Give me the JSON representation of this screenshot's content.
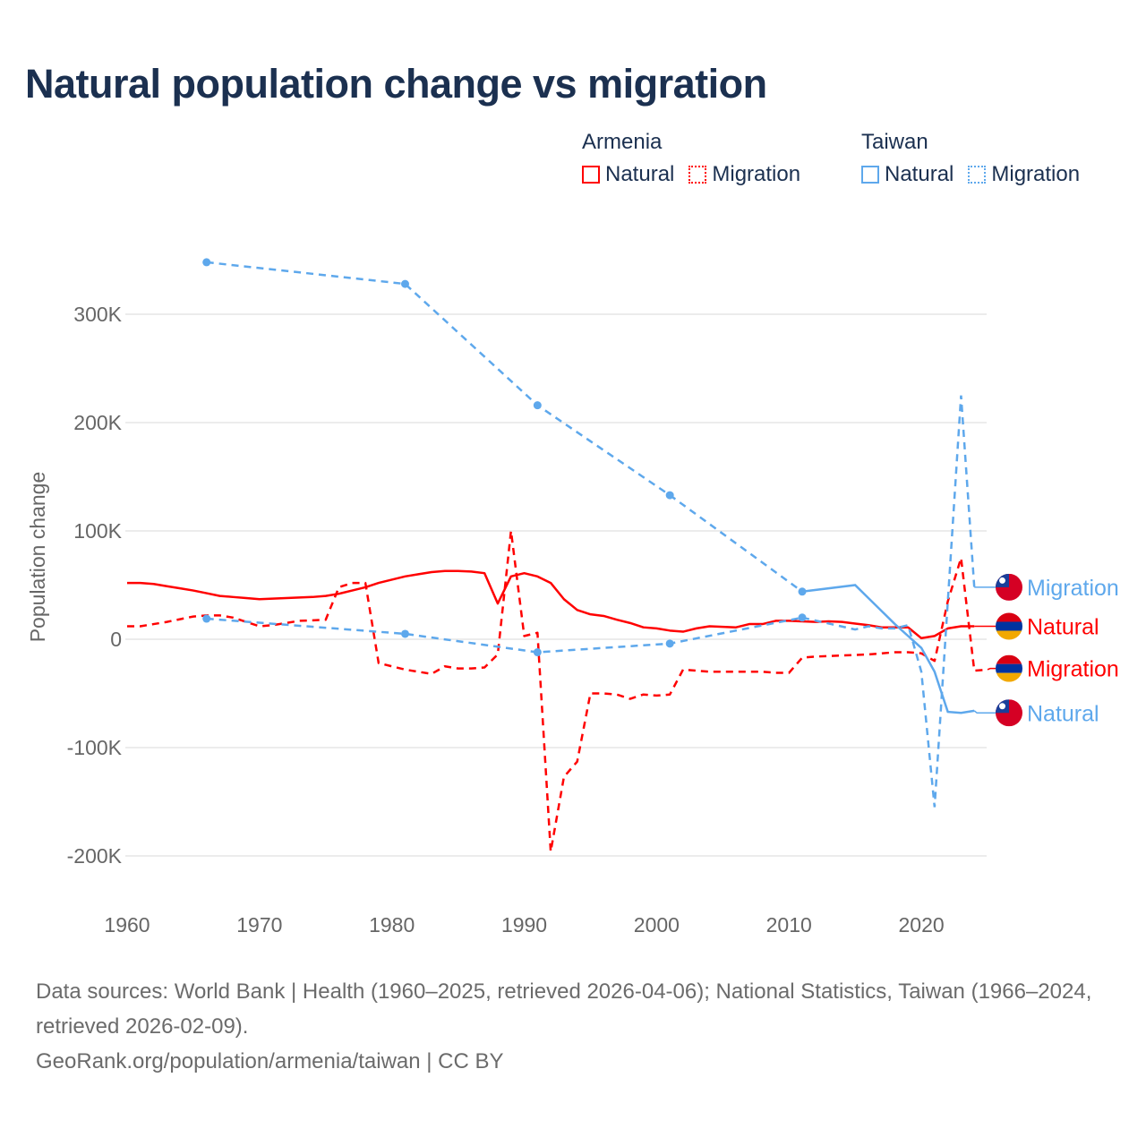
{
  "title": "Natural population change vs migration",
  "legend": [
    {
      "group": "Armenia",
      "color": "#ff0000",
      "items": [
        "Natural",
        "Migration"
      ]
    },
    {
      "group": "Taiwan",
      "color": "#5ea8ec",
      "items": [
        "Natural",
        "Migration"
      ]
    }
  ],
  "footer": {
    "sources": "Data sources: World Bank | Health (1960–2025, retrieved 2026-04-06); National Statistics, Taiwan (1966–2024, retrieved 2026-02-09).",
    "credit": "GeoRank.org/population/armenia/taiwan | CC BY"
  },
  "chart_data": {
    "type": "line",
    "title": "Natural population change vs migration",
    "xlabel": "",
    "ylabel": "Population change",
    "xlim": [
      1960,
      2025
    ],
    "ylim": [
      -200000,
      300000
    ],
    "x_ticks": [
      1960,
      1970,
      1980,
      1990,
      2000,
      2010,
      2020
    ],
    "y_ticks": [
      -200000,
      -100000,
      0,
      100000,
      200000,
      300000
    ],
    "y_tick_labels": [
      "-200K",
      "-100K",
      "0",
      "100K",
      "200K",
      "300K"
    ],
    "grid": true,
    "legend_position": "top-right",
    "series": [
      {
        "name": "Natural",
        "country": "Armenia",
        "color": "#ff0000",
        "style": "solid",
        "end_label": "Natural",
        "flag": "armenia",
        "x": [
          1960,
          1961,
          1962,
          1963,
          1964,
          1965,
          1966,
          1967,
          1968,
          1969,
          1970,
          1971,
          1972,
          1973,
          1974,
          1975,
          1976,
          1977,
          1978,
          1979,
          1980,
          1981,
          1982,
          1983,
          1984,
          1985,
          1986,
          1987,
          1988,
          1989,
          1990,
          1991,
          1992,
          1993,
          1994,
          1995,
          1996,
          1997,
          1998,
          1999,
          2000,
          2001,
          2002,
          2003,
          2004,
          2005,
          2006,
          2007,
          2008,
          2009,
          2010,
          2011,
          2012,
          2013,
          2014,
          2015,
          2016,
          2017,
          2018,
          2019,
          2020,
          2021,
          2022,
          2023,
          2024
        ],
        "y": [
          52000,
          52000,
          51000,
          49000,
          47000,
          45000,
          42500,
          40000,
          39000,
          38000,
          37000,
          37500,
          38000,
          38500,
          39000,
          40000,
          42000,
          45000,
          48000,
          52000,
          55000,
          58000,
          60000,
          62000,
          63000,
          63000,
          62500,
          61000,
          33000,
          58000,
          61000,
          58000,
          52000,
          37000,
          27000,
          23000,
          21500,
          18000,
          15000,
          11000,
          10000,
          8000,
          7000,
          10000,
          12000,
          11500,
          11000,
          14000,
          14000,
          17000,
          17000,
          16500,
          16000,
          16500,
          16000,
          14500,
          13000,
          11000,
          11000,
          11000,
          1000,
          3000,
          10000,
          12000,
          12000
        ]
      },
      {
        "name": "Migration",
        "country": "Armenia",
        "color": "#ff0000",
        "style": "dashed",
        "end_label": "Migration",
        "flag": "armenia",
        "x": [
          1960,
          1961,
          1962,
          1963,
          1964,
          1965,
          1966,
          1967,
          1968,
          1969,
          1970,
          1971,
          1972,
          1973,
          1974,
          1975,
          1976,
          1977,
          1978,
          1979,
          1980,
          1981,
          1982,
          1983,
          1984,
          1985,
          1986,
          1987,
          1988,
          1989,
          1990,
          1991,
          1992,
          1993,
          1994,
          1995,
          1996,
          1997,
          1998,
          1999,
          2000,
          2001,
          2002,
          2003,
          2004,
          2005,
          2006,
          2007,
          2008,
          2009,
          2010,
          2011,
          2012,
          2013,
          2014,
          2015,
          2016,
          2017,
          2018,
          2019,
          2020,
          2021,
          2022,
          2023,
          2024,
          2025
        ],
        "y": [
          12000,
          12000,
          14000,
          16000,
          18500,
          21000,
          22000,
          22000,
          20000,
          16000,
          12000,
          13000,
          15000,
          17000,
          17500,
          18000,
          48000,
          52000,
          52000,
          -22000,
          -25000,
          -28000,
          -30000,
          -32000,
          -25000,
          -27000,
          -27000,
          -26000,
          -14000,
          100000,
          3000,
          6000,
          -196000,
          -127000,
          -113000,
          -50000,
          -50000,
          -51000,
          -55000,
          -51000,
          -52000,
          -51000,
          -28000,
          -29000,
          -30000,
          -30000,
          -30000,
          -30000,
          -30000,
          -31000,
          -31000,
          -17000,
          -16000,
          -15500,
          -15000,
          -14500,
          -14000,
          -13000,
          -12000,
          -12000,
          -13000,
          -20000,
          35000,
          75000,
          -29000,
          -28000
        ]
      },
      {
        "name": "Natural",
        "country": "Taiwan",
        "color": "#5ea8ec",
        "style": "solid",
        "end_label": "Natural",
        "flag": "taiwan",
        "x": [
          1966,
          1981,
          1991,
          2001,
          2011,
          2015,
          2016,
          2017,
          2018,
          2019,
          2020,
          2021,
          2022,
          2023,
          2024
        ],
        "y": [
          348000,
          328000,
          216000,
          133000,
          44000,
          50000,
          38000,
          26000,
          14000,
          3000,
          -8000,
          -30000,
          -67000,
          -68000,
          -66000
        ]
      },
      {
        "name": "Migration",
        "country": "Taiwan",
        "color": "#5ea8ec",
        "style": "dashed",
        "end_label": "Migration",
        "flag": "taiwan",
        "x": [
          1966,
          1981,
          1991,
          2001,
          2011,
          2015,
          2016,
          2017,
          2018,
          2019,
          2020,
          2021,
          2022,
          2023,
          2024
        ],
        "y": [
          19000,
          5000,
          -12000,
          -4000,
          20000,
          9000,
          12000,
          10000,
          10000,
          13000,
          -30000,
          -155000,
          35000,
          225000,
          48000
        ]
      }
    ],
    "marker_years_taiwan": [
      1966,
      1981,
      1991,
      2001,
      2011
    ]
  }
}
